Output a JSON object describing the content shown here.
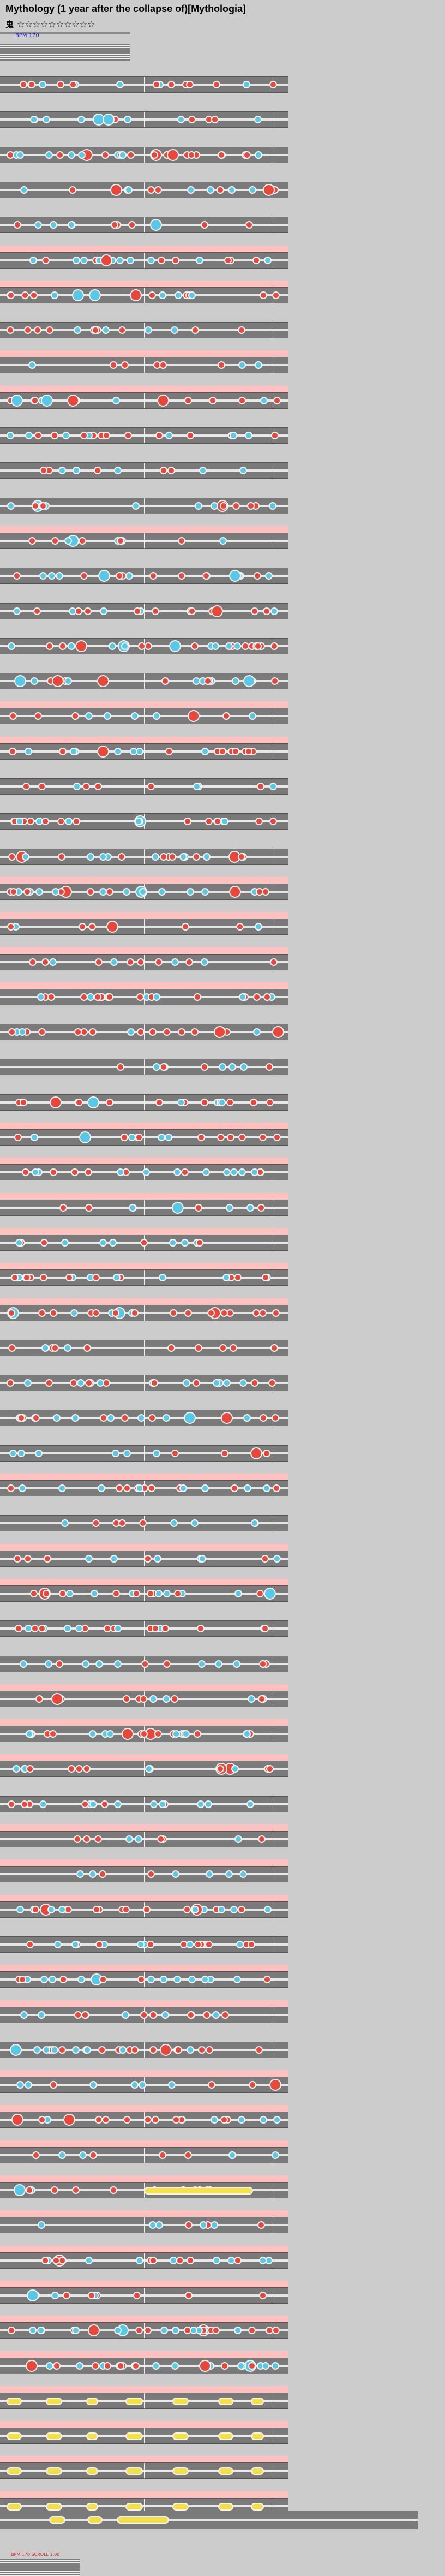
{
  "header": {
    "title": "Mythology (1 year after the collapse of)[Mythologia]",
    "difficulty_label": "鬼",
    "stars": "☆☆☆☆☆☆☆☆☆☆",
    "bpm_note": "BPM 170"
  },
  "colors": {
    "background": "#cccccc",
    "lane": "#7a7a7a",
    "gogo_band": "#ffc0c0",
    "don": "#e8473a",
    "ka": "#58c8e8",
    "roll": "#f6e048",
    "annotation": "#d02020"
  },
  "footer": {
    "note": "BPM 170 SCROLL 1.00"
  }
}
